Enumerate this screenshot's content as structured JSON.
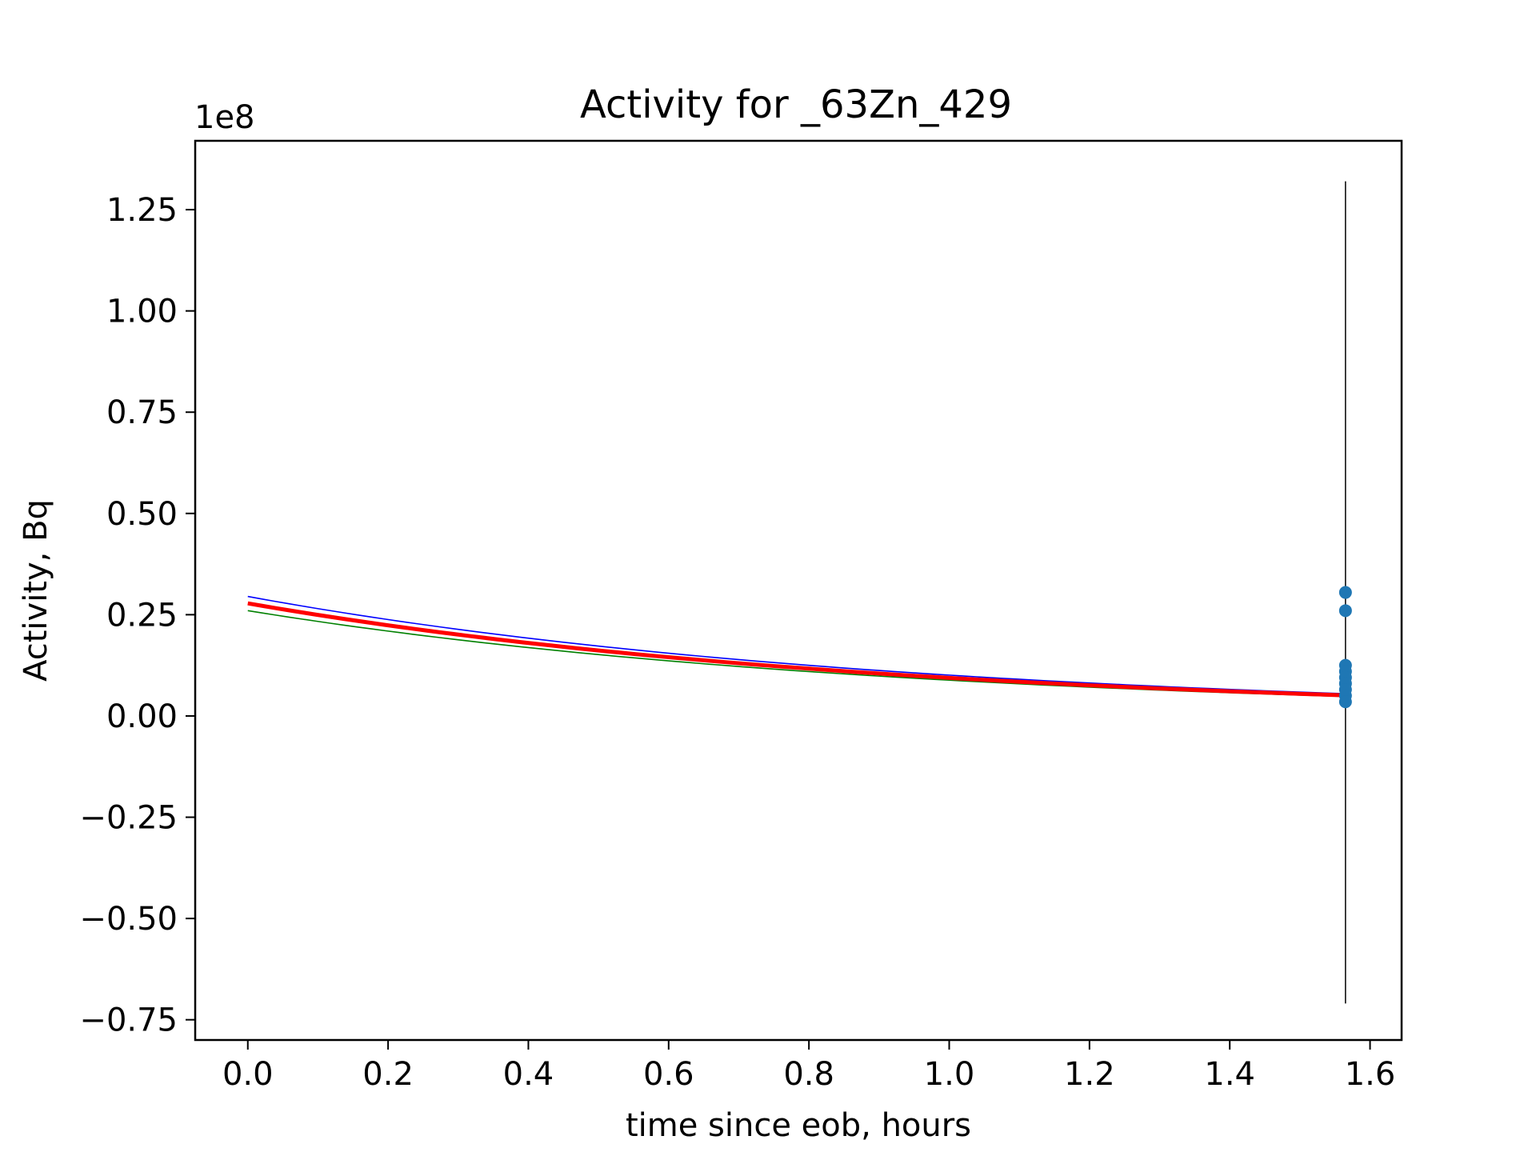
{
  "chart_data": {
    "type": "line",
    "title": "Activity for _63Zn_429",
    "xlabel": "time since eob, hours",
    "ylabel": "Activity, Bq",
    "y_scale_label": "1e8",
    "xlim": [
      -0.075,
      1.645
    ],
    "ylim": [
      -0.8,
      1.42
    ],
    "y_multiplier": 100000000,
    "x_ticks": [
      0.0,
      0.2,
      0.4,
      0.6,
      0.8,
      1.0,
      1.2,
      1.4,
      1.6
    ],
    "x_tick_labels": [
      "0.0",
      "0.2",
      "0.4",
      "0.6",
      "0.8",
      "1.0",
      "1.2",
      "1.4",
      "1.6"
    ],
    "y_ticks": [
      -0.75,
      -0.5,
      -0.25,
      0.0,
      0.25,
      0.5,
      0.75,
      1.0,
      1.25
    ],
    "y_tick_labels": [
      "−0.75",
      "−0.50",
      "−0.25",
      "0.00",
      "0.25",
      "0.50",
      "0.75",
      "1.00",
      "1.25"
    ],
    "grid": false,
    "curves": [
      {
        "color": "#0000ff",
        "width": 1.6,
        "y0": 0.295,
        "y_end": 0.055,
        "x_start": 0.0,
        "x_end": 1.565
      },
      {
        "color": "#008000",
        "width": 1.6,
        "y0": 0.26,
        "y_end": 0.048,
        "x_start": 0.0,
        "x_end": 1.565
      },
      {
        "color": "#ff0000",
        "width": 5,
        "y0": 0.278,
        "y_end": 0.051,
        "x_start": 0.0,
        "x_end": 1.565
      }
    ],
    "errorbar": {
      "x": 1.565,
      "y_low": -0.71,
      "y_high": 1.32,
      "color": "#000000"
    },
    "points": {
      "color": "#1f77b4",
      "x": 1.565,
      "y": [
        0.305,
        0.26,
        0.125,
        0.11,
        0.095,
        0.08,
        0.065,
        0.05,
        0.035
      ]
    }
  }
}
